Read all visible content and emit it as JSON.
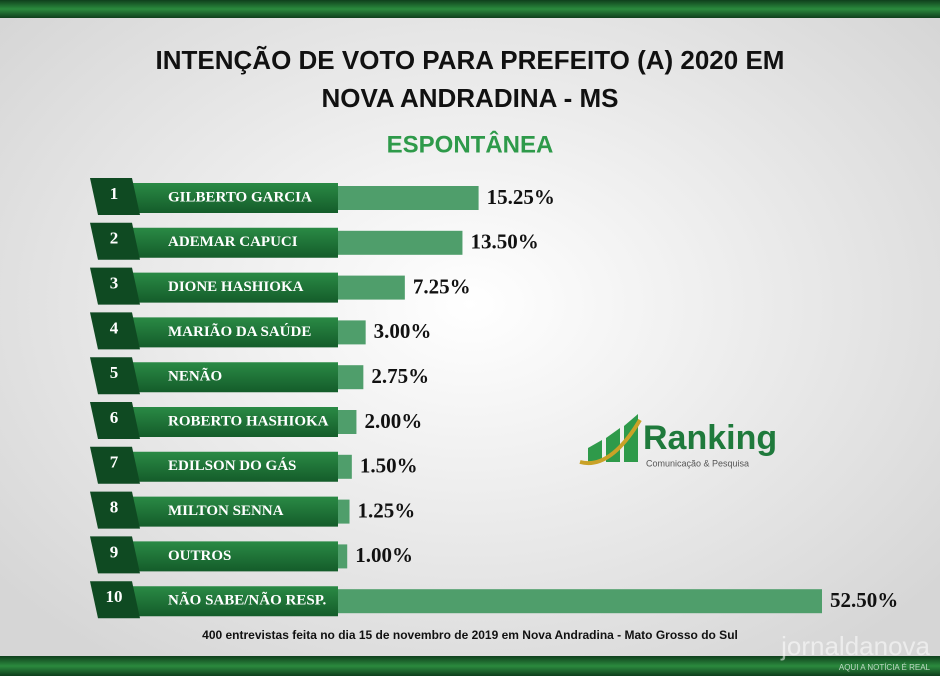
{
  "chart_data": {
    "type": "bar",
    "orientation": "horizontal",
    "title_lines": [
      "INTENÇÃO DE VOTO PARA PREFEITO (A) 2020 EM",
      "NOVA ANDRADINA - MS"
    ],
    "subtitle": "ESPONTÂNEA",
    "ranks": [
      "1",
      "2",
      "3",
      "4",
      "5",
      "6",
      "7",
      "8",
      "9",
      "10"
    ],
    "categories": [
      "GILBERTO GARCIA",
      "ADEMAR CAPUCI",
      "DIONE HASHIOKA",
      "MARIÃO DA SAÚDE",
      "NENÃO",
      "ROBERTO HASHIOKA",
      "EDILSON DO GÁS",
      "MILTON SENNA",
      "OUTROS",
      "NÃO SABE/NÃO RESP."
    ],
    "values": [
      15.25,
      13.5,
      7.25,
      3.0,
      2.75,
      2.0,
      1.5,
      1.25,
      1.0,
      52.5
    ],
    "value_labels": [
      "15.25%",
      "13.50%",
      "7.25%",
      "3.00%",
      "2.75%",
      "2.00%",
      "1.50%",
      "1.25%",
      "1.00%",
      "52.50%"
    ],
    "color": "#4f9e6b",
    "footnote": "400 entrevistas feita no dia 15 de novembro de 2019 em Nova Andradina - Mato Grosso do Sul",
    "logo": {
      "name": "Ranking",
      "tagline": "Comunicação & Pesquisa"
    },
    "watermark": {
      "name": "jornaldanova",
      "tagline": "AQUI A NOTÍCIA É REAL"
    }
  }
}
